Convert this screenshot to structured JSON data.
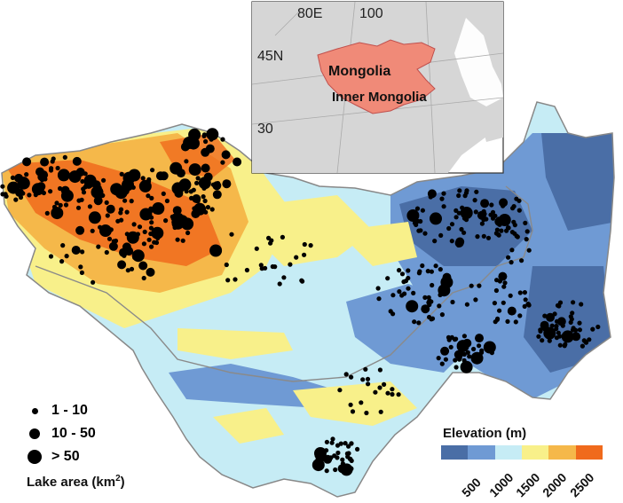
{
  "inset": {
    "lon_labels": [
      "80E",
      "100"
    ],
    "lat_labels": [
      "45N",
      "30"
    ],
    "region_labels": [
      "Mongolia",
      "Inner Mongolia"
    ]
  },
  "lake_legend": {
    "title": "Lake area (km",
    "title_sup": "2",
    "title_close": ")",
    "sizes": [
      {
        "label": "1 - 10"
      },
      {
        "label": "10 - 50"
      },
      {
        "label": "> 50"
      }
    ]
  },
  "elevation_legend": {
    "title": "Elevation (m)",
    "colors": [
      "#4a6ea6",
      "#6f9ad4",
      "#c6ecf5",
      "#f8f08a",
      "#f5b84a",
      "#f06a1c"
    ],
    "ticks": [
      "500",
      "1000",
      "1500",
      "2000",
      "2500"
    ]
  },
  "colors": {
    "inset_region": "#f08a78",
    "land_gray": "#d6d6d6",
    "lake_dot": "#000000",
    "border": "#8a8a8a"
  }
}
